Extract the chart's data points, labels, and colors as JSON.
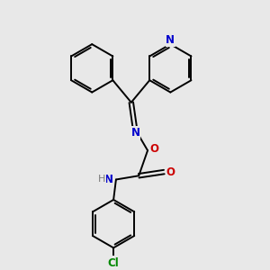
{
  "bg_color": "#e8e8e8",
  "bond_color": "#000000",
  "N_color": "#0000cc",
  "O_color": "#cc0000",
  "Cl_color": "#008800",
  "H_color": "#7a7a7a",
  "line_width": 1.4,
  "figsize": [
    3.0,
    3.0
  ],
  "dpi": 100,
  "xlim": [
    0,
    10
  ],
  "ylim": [
    0,
    10
  ]
}
